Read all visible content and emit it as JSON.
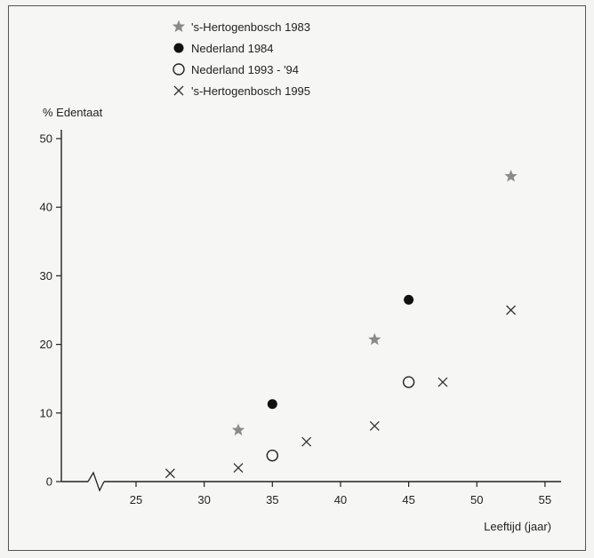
{
  "chart_data": {
    "type": "scatter",
    "title": "",
    "ylabel": "% Edentaat",
    "xlabel": "Leeftijd (jaar)",
    "xlim": [
      20,
      57
    ],
    "ylim": [
      0,
      52
    ],
    "xticks": [
      25,
      30,
      35,
      40,
      45,
      50,
      55
    ],
    "yticks": [
      0,
      10,
      20,
      30,
      40,
      50
    ],
    "axis_break": true,
    "grid": false,
    "legend_position": "top",
    "series": [
      {
        "name": "'s-Hertogenbosch 1983",
        "marker": "star",
        "color": "#8a8a8a",
        "points": [
          [
            32.5,
            7.5
          ],
          [
            42.5,
            20.7
          ],
          [
            52.5,
            44.5
          ]
        ]
      },
      {
        "name": "Nederland 1984",
        "marker": "filled-circle",
        "color": "#111111",
        "points": [
          [
            35,
            11.3
          ],
          [
            45,
            26.5
          ]
        ]
      },
      {
        "name": "Nederland 1993 - '94",
        "marker": "open-circle",
        "color": "#222222",
        "points": [
          [
            35,
            3.8
          ],
          [
            45,
            14.5
          ]
        ]
      },
      {
        "name": "'s-Hertogenbosch 1995",
        "marker": "cross",
        "color": "#333333",
        "points": [
          [
            27.5,
            1.2
          ],
          [
            32.5,
            2.0
          ],
          [
            37.5,
            5.8
          ],
          [
            42.5,
            8.1
          ],
          [
            47.5,
            14.5
          ],
          [
            52.5,
            25.0
          ]
        ]
      }
    ]
  }
}
